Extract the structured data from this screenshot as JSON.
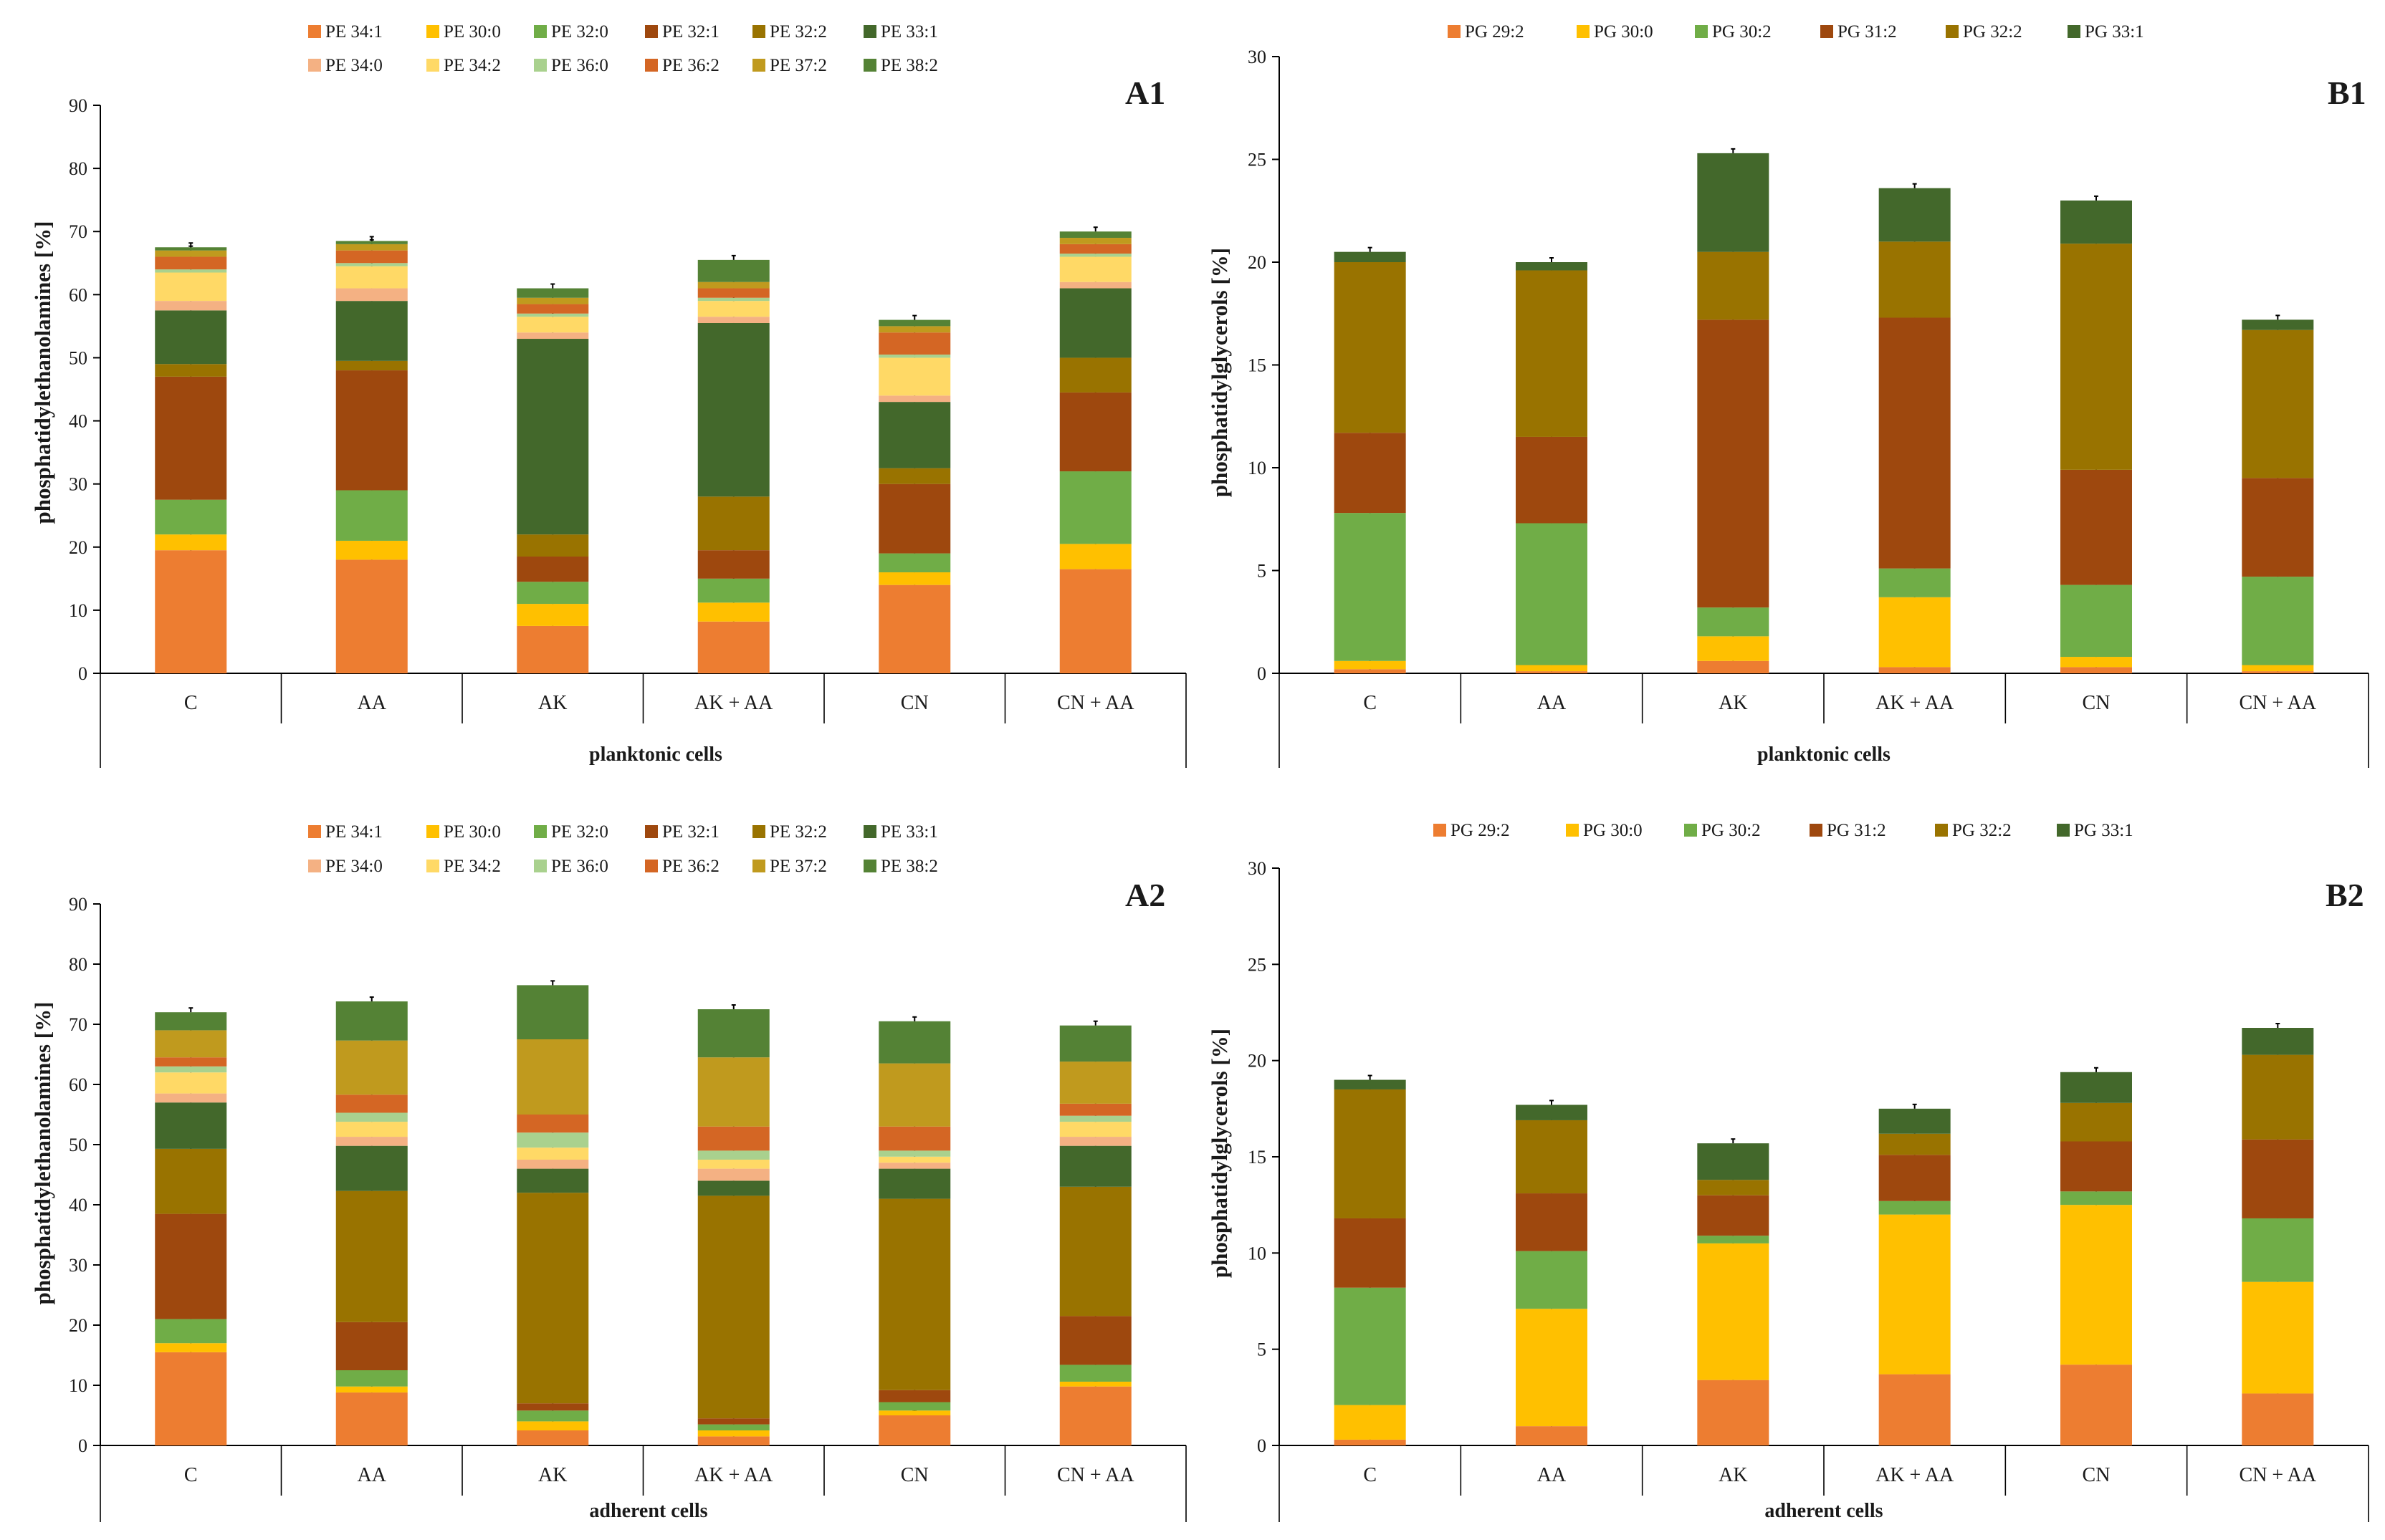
{
  "chart_data": [
    {
      "id": "A1",
      "type": "bar",
      "stacked": true,
      "panel_label": "A1",
      "ylabel": "phosphatidylethanolamines [%]",
      "xlabel": "planktonic cells",
      "ylim": [
        0,
        90
      ],
      "yticks": [
        0,
        10,
        20,
        30,
        40,
        50,
        60,
        70,
        80,
        90
      ],
      "categories": [
        "C",
        "AA",
        "AK",
        "AK + AA",
        "CN",
        "CN + AA"
      ],
      "legend_rows": [
        [
          "PE 34:1",
          "PE 30:0",
          "PE 32:0",
          "PE 32:1",
          "PE 32:2",
          "PE 33:1"
        ],
        [
          "PE 34:0",
          "PE 34:2",
          "PE 36:0",
          "PE 36:2",
          "PE 37:2",
          "PE 38:2"
        ]
      ],
      "series": [
        {
          "name": "PE 34:1",
          "color": "#ED7D31",
          "values": [
            19.5,
            18.0,
            7.5,
            8.2,
            14.0,
            16.5
          ]
        },
        {
          "name": "PE 30:0",
          "color": "#FFC000",
          "values": [
            2.5,
            3.0,
            3.5,
            3.0,
            2.0,
            4.0
          ]
        },
        {
          "name": "PE 32:0",
          "color": "#70AD47",
          "values": [
            5.5,
            8.0,
            3.5,
            3.8,
            3.0,
            11.5
          ]
        },
        {
          "name": "PE 32:1",
          "color": "#9E480E",
          "values": [
            19.5,
            19.0,
            4.0,
            4.5,
            11.0,
            12.5
          ]
        },
        {
          "name": "PE 32:2",
          "color": "#997300",
          "values": [
            2.0,
            1.5,
            3.5,
            8.5,
            2.5,
            5.5
          ]
        },
        {
          "name": "PE 33:1",
          "color": "#43682B",
          "values": [
            8.5,
            9.5,
            31.0,
            27.5,
            10.5,
            11.0
          ]
        },
        {
          "name": "PE 34:0",
          "color": "#F4B183",
          "values": [
            1.5,
            2.0,
            1.0,
            1.0,
            1.0,
            1.0
          ]
        },
        {
          "name": "PE 34:2",
          "color": "#FFD966",
          "values": [
            4.5,
            3.5,
            2.5,
            2.5,
            6.0,
            4.0
          ]
        },
        {
          "name": "PE 36:0",
          "color": "#A9D18E",
          "values": [
            0.5,
            0.5,
            0.5,
            0.5,
            0.5,
            0.5
          ]
        },
        {
          "name": "PE 36:2",
          "color": "#D46624",
          "values": [
            2.0,
            2.0,
            1.5,
            1.5,
            3.5,
            1.5
          ]
        },
        {
          "name": "PE 37:2",
          "color": "#C09A1E",
          "values": [
            1.0,
            1.0,
            1.0,
            1.0,
            1.0,
            1.0
          ]
        },
        {
          "name": "PE 38:2",
          "color": "#548235",
          "values": [
            0.5,
            0.5,
            1.5,
            3.5,
            1.0,
            1.0
          ]
        }
      ]
    },
    {
      "id": "B1",
      "type": "bar",
      "stacked": true,
      "panel_label": "B1",
      "ylabel": "phosphatidylglycerols [%]",
      "xlabel": "planktonic cells",
      "ylim": [
        0,
        30
      ],
      "yticks": [
        0,
        5,
        10,
        15,
        20,
        25,
        30
      ],
      "categories": [
        "C",
        "AA",
        "AK",
        "AK + AA",
        "CN",
        "CN + AA"
      ],
      "legend_rows": [
        [
          "PG 29:2",
          "PG 30:0",
          "PG 30:2",
          "PG 31:2",
          "PG 32:2",
          "PG 33:1"
        ]
      ],
      "series": [
        {
          "name": "PG 29:2",
          "color": "#ED7D31",
          "values": [
            0.2,
            0.1,
            0.6,
            0.3,
            0.3,
            0.1
          ]
        },
        {
          "name": "PG 30:0",
          "color": "#FFC000",
          "values": [
            0.4,
            0.3,
            1.2,
            3.4,
            0.5,
            0.3
          ]
        },
        {
          "name": "PG 30:2",
          "color": "#70AD47",
          "values": [
            7.2,
            6.9,
            1.4,
            1.4,
            3.5,
            4.3
          ]
        },
        {
          "name": "PG 31:2",
          "color": "#9E480E",
          "values": [
            3.9,
            4.2,
            14.0,
            12.2,
            5.6,
            4.8
          ]
        },
        {
          "name": "PG 32:2",
          "color": "#997300",
          "values": [
            8.3,
            8.1,
            3.3,
            3.7,
            11.0,
            7.2
          ]
        },
        {
          "name": "PG 33:1",
          "color": "#43682B",
          "values": [
            0.5,
            0.4,
            4.8,
            2.6,
            2.1,
            0.5
          ]
        }
      ]
    },
    {
      "id": "A2",
      "type": "bar",
      "stacked": true,
      "panel_label": "A2",
      "ylabel": "phosphatidylethanolamines [%]",
      "xlabel": "adherent cells",
      "ylim": [
        0,
        90
      ],
      "yticks": [
        0,
        10,
        20,
        30,
        40,
        50,
        60,
        70,
        80,
        90
      ],
      "categories": [
        "C",
        "AA",
        "AK",
        "AK + AA",
        "CN",
        "CN + AA"
      ],
      "legend_rows": [
        [
          "PE 34:1",
          "PE 30:0",
          "PE 32:0",
          "PE 32:1",
          "PE 32:2",
          "PE 33:1"
        ],
        [
          "PE 34:0",
          "PE 34:2",
          "PE 36:0",
          "PE 36:2",
          "PE 37:2",
          "PE 38:2"
        ]
      ],
      "series": [
        {
          "name": "PE 34:1",
          "color": "#ED7D31",
          "values": [
            15.5,
            8.8,
            2.5,
            1.5,
            5.0,
            9.8
          ]
        },
        {
          "name": "PE 30:0",
          "color": "#FFC000",
          "values": [
            1.5,
            1.0,
            1.5,
            1.0,
            0.8,
            0.8
          ]
        },
        {
          "name": "PE 32:0",
          "color": "#70AD47",
          "values": [
            4.0,
            2.7,
            1.8,
            1.0,
            1.4,
            2.8
          ]
        },
        {
          "name": "PE 32:1",
          "color": "#9E480E",
          "values": [
            17.5,
            8.0,
            1.2,
            1.0,
            2.0,
            8.1
          ]
        },
        {
          "name": "PE 32:2",
          "color": "#997300",
          "values": [
            10.8,
            21.8,
            35.0,
            37.0,
            31.8,
            21.5
          ]
        },
        {
          "name": "PE 33:1",
          "color": "#43682B",
          "values": [
            7.7,
            7.5,
            4.0,
            2.5,
            5.0,
            6.8
          ]
        },
        {
          "name": "PE 34:0",
          "color": "#F4B183",
          "values": [
            1.5,
            1.5,
            1.5,
            2.0,
            1.0,
            1.5
          ]
        },
        {
          "name": "PE 34:2",
          "color": "#FFD966",
          "values": [
            3.5,
            2.5,
            2.0,
            1.5,
            1.0,
            2.5
          ]
        },
        {
          "name": "PE 36:0",
          "color": "#A9D18E",
          "values": [
            1.0,
            1.5,
            2.5,
            1.5,
            1.0,
            1.0
          ]
        },
        {
          "name": "PE 36:2",
          "color": "#D46624",
          "values": [
            1.5,
            3.0,
            3.0,
            4.0,
            4.0,
            2.0
          ]
        },
        {
          "name": "PE 37:2",
          "color": "#C09A1E",
          "values": [
            4.5,
            9.0,
            12.5,
            11.5,
            10.5,
            7.0
          ]
        },
        {
          "name": "PE 38:2",
          "color": "#548235",
          "values": [
            3.0,
            6.5,
            9.0,
            8.0,
            7.0,
            6.0
          ]
        }
      ]
    },
    {
      "id": "B2",
      "type": "bar",
      "stacked": true,
      "panel_label": "B2",
      "ylabel": "phosphatidylglycerols [%]",
      "xlabel": "adherent cells",
      "ylim": [
        0,
        30
      ],
      "yticks": [
        0,
        5,
        10,
        15,
        20,
        25,
        30
      ],
      "categories": [
        "C",
        "AA",
        "AK",
        "AK + AA",
        "CN",
        "CN + AA"
      ],
      "legend_rows": [
        [
          "PG 29:2",
          "PG 30:0",
          "PG 30:2",
          "PG 31:2",
          "PG 32:2",
          "PG 33:1"
        ]
      ],
      "series": [
        {
          "name": "PG 29:2",
          "color": "#ED7D31",
          "values": [
            0.3,
            1.0,
            3.4,
            3.7,
            4.2,
            2.7
          ]
        },
        {
          "name": "PG 30:0",
          "color": "#FFC000",
          "values": [
            1.8,
            6.1,
            7.1,
            8.3,
            8.3,
            5.8
          ]
        },
        {
          "name": "PG 30:2",
          "color": "#70AD47",
          "values": [
            6.1,
            3.0,
            0.4,
            0.7,
            0.7,
            3.3
          ]
        },
        {
          "name": "PG 31:2",
          "color": "#9E480E",
          "values": [
            3.6,
            3.0,
            2.1,
            2.4,
            2.6,
            4.1
          ]
        },
        {
          "name": "PG 32:2",
          "color": "#997300",
          "values": [
            6.7,
            3.8,
            0.8,
            1.1,
            2.0,
            4.4
          ]
        },
        {
          "name": "PG 33:1",
          "color": "#43682B",
          "values": [
            0.5,
            0.8,
            1.9,
            1.3,
            1.6,
            1.4
          ]
        }
      ]
    }
  ]
}
